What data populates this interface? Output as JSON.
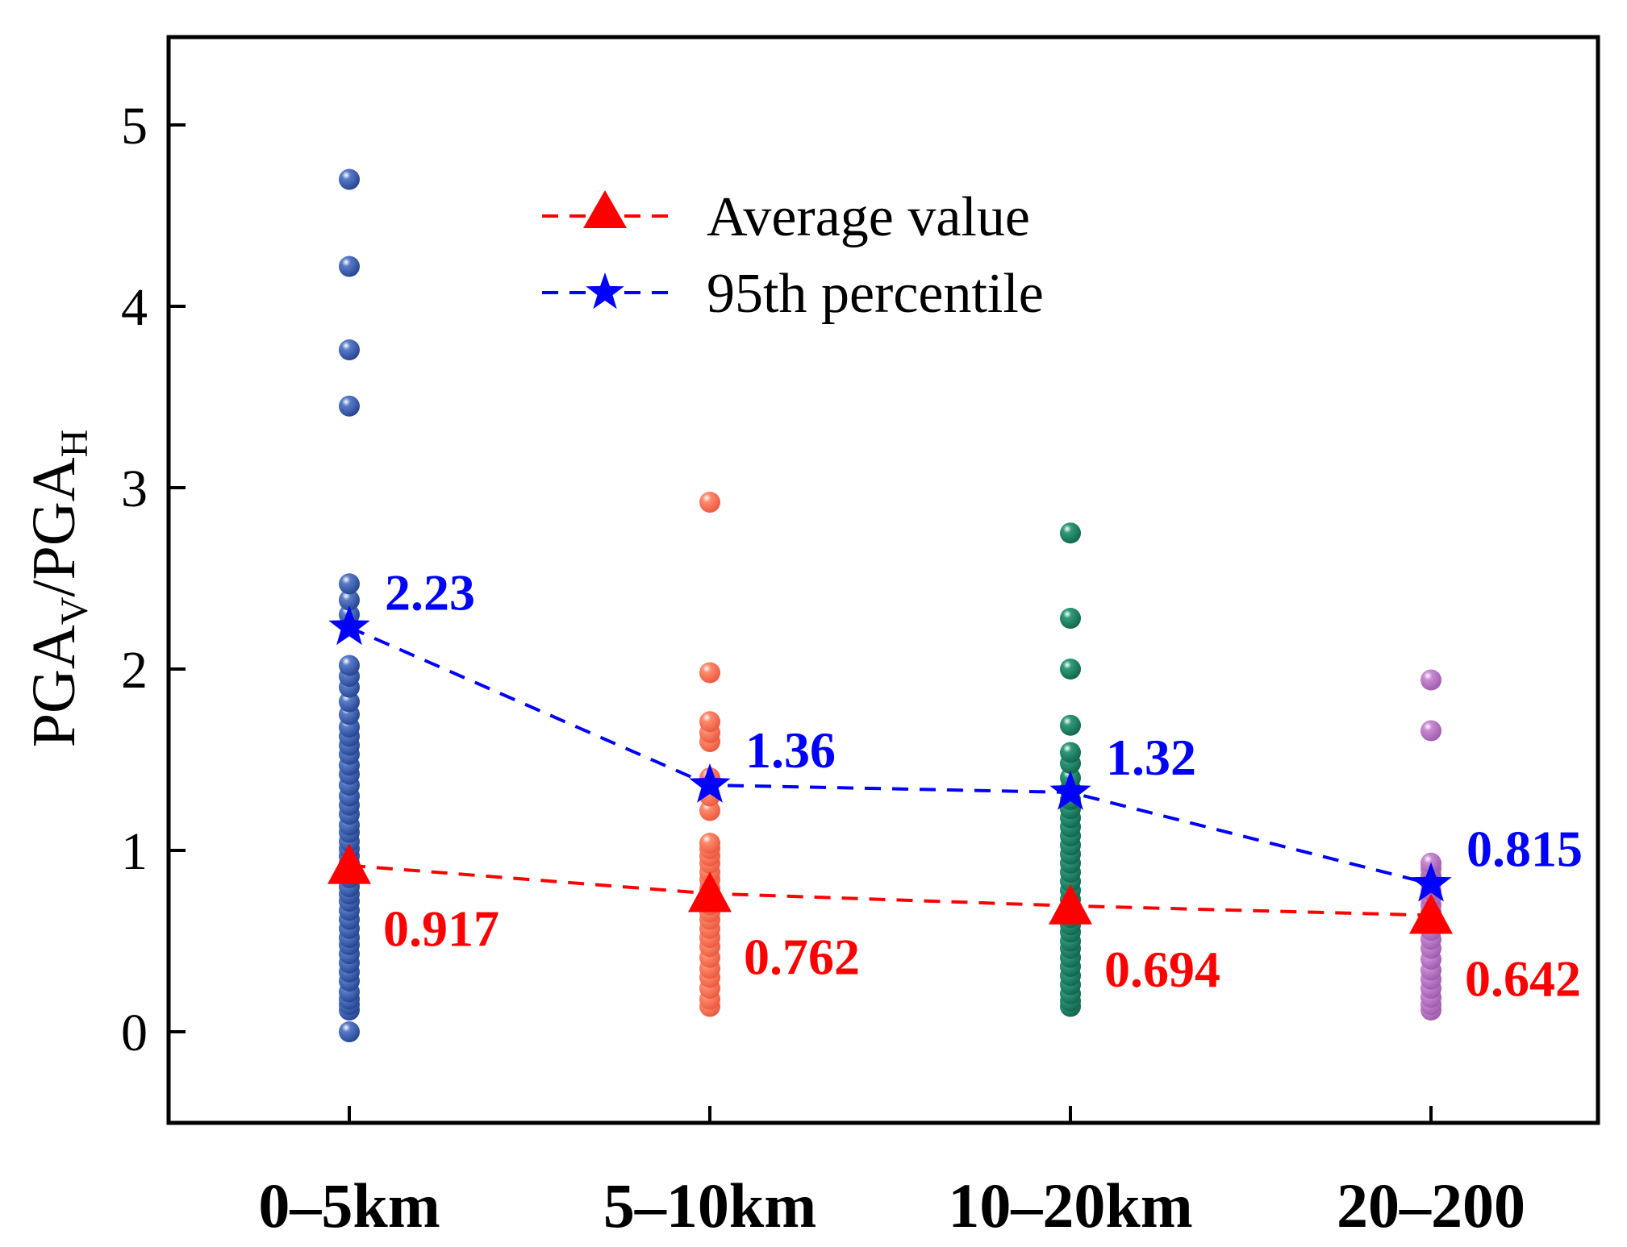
{
  "chart_data": {
    "type": "scatter",
    "title": "",
    "xlabel": "",
    "ylabel": {
      "main_a": "PGA",
      "sub_a": "V",
      "sep": "/",
      "main_b": "PGA",
      "sub_b": "H"
    },
    "ylim": [
      -0.5,
      5.5
    ],
    "yticks": [
      "0",
      "1",
      "2",
      "3",
      "4",
      "5"
    ],
    "categories": [
      "0–5km",
      "5–10km",
      "10–20km",
      "20–200"
    ],
    "legend": {
      "position": "top-center",
      "entries": [
        {
          "name": "Average value",
          "marker": "triangle",
          "color": "#ff0000"
        },
        {
          "name": "95th percentile",
          "marker": "star",
          "color": "#0000ff"
        }
      ]
    },
    "series": [
      {
        "name": "Average value",
        "color": "#ff0000",
        "values": [
          0.917,
          0.762,
          0.694,
          0.642
        ],
        "labels": [
          "0.917",
          "0.762",
          "0.694",
          "0.642"
        ]
      },
      {
        "name": "95th percentile",
        "color": "#0000ff",
        "values": [
          2.23,
          1.36,
          1.32,
          0.815
        ],
        "labels": [
          "2.23",
          "1.36",
          "1.32",
          "0.815"
        ]
      }
    ],
    "groups": [
      {
        "category": "0–5km",
        "color": "#2b4e9e",
        "points": [
          0.0,
          0.12,
          0.15,
          0.18,
          0.22,
          0.28,
          0.33,
          0.38,
          0.43,
          0.48,
          0.52,
          0.57,
          0.62,
          0.67,
          0.72,
          0.76,
          0.8,
          0.85,
          0.89,
          0.93,
          0.97,
          1.01,
          1.05,
          1.1,
          1.14,
          1.2,
          1.25,
          1.3,
          1.36,
          1.42,
          1.47,
          1.53,
          1.58,
          1.63,
          1.68,
          1.75,
          1.82,
          1.9,
          1.96,
          2.02,
          2.3,
          2.38,
          2.47,
          3.45,
          3.76,
          4.22,
          4.7
        ]
      },
      {
        "category": "5–10km",
        "color": "#f7694a",
        "points": [
          0.14,
          0.18,
          0.24,
          0.3,
          0.35,
          0.41,
          0.47,
          0.52,
          0.57,
          0.62,
          0.66,
          0.7,
          0.74,
          0.79,
          0.84,
          0.88,
          0.93,
          0.97,
          1.01,
          1.04,
          1.22,
          1.3,
          1.4,
          1.6,
          1.65,
          1.71,
          1.98,
          2.92
        ]
      },
      {
        "category": "10–20km",
        "color": "#17775c",
        "points": [
          0.14,
          0.17,
          0.21,
          0.26,
          0.31,
          0.36,
          0.41,
          0.46,
          0.5,
          0.55,
          0.59,
          0.63,
          0.68,
          0.73,
          0.78,
          0.83,
          0.88,
          0.93,
          0.98,
          1.03,
          1.08,
          1.13,
          1.18,
          1.23,
          1.28,
          1.34,
          1.4,
          1.48,
          1.54,
          1.69,
          2.0,
          2.28,
          2.75
        ]
      },
      {
        "category": "20–200",
        "color": "#b36cc0",
        "points": [
          0.12,
          0.15,
          0.19,
          0.24,
          0.29,
          0.34,
          0.4,
          0.46,
          0.51,
          0.56,
          0.61,
          0.66,
          0.7,
          0.74,
          0.78,
          0.82,
          0.86,
          0.9,
          0.93,
          1.66,
          1.94
        ]
      }
    ]
  }
}
